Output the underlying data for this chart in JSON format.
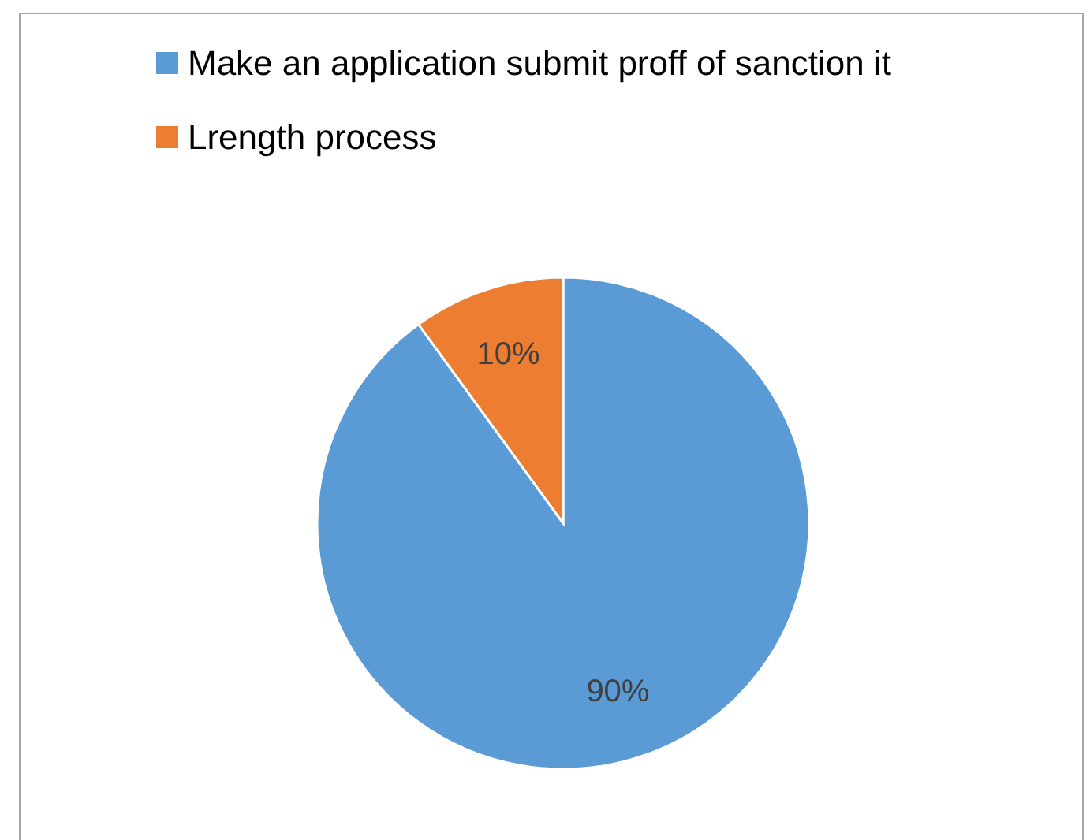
{
  "chart_data": {
    "type": "pie",
    "categories": [
      "Make an application submit proff of sanction it",
      "Lrength process"
    ],
    "values": [
      90,
      10
    ],
    "colors": [
      "#5b9bd5",
      "#ed7d31"
    ],
    "value_labels": [
      "90%",
      "10%"
    ],
    "legend": "top"
  }
}
